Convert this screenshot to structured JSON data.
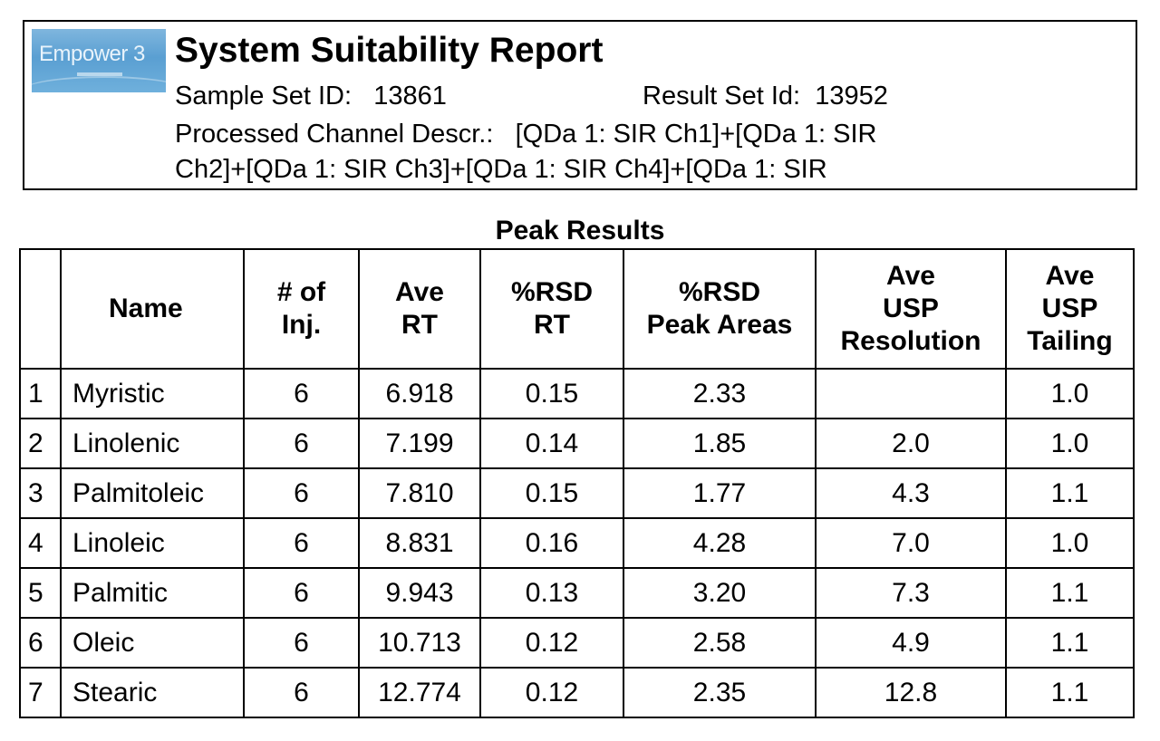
{
  "header": {
    "logo_text": "Empower 3",
    "title": "System Suitability Report",
    "sample_set_label": "Sample Set ID:",
    "sample_set_id": "13861",
    "result_set_label": "Result Set Id:",
    "result_set_id": "13952",
    "channel_label": "Processed Channel Descr.:",
    "channel_line1": "[QDa 1: SIR Ch1]+[QDa 1: SIR",
    "channel_line2": "Ch2]+[QDa 1: SIR Ch3]+[QDa 1: SIR Ch4]+[QDa 1: SIR"
  },
  "table": {
    "caption": "Peak Results",
    "headers": [
      "",
      "Name",
      "# of\nInj.",
      "Ave\nRT",
      "%RSD\nRT",
      "%RSD\nPeak Areas",
      "Ave\nUSP\nResolution",
      "Ave\nUSP\nTailing"
    ],
    "rows": [
      [
        "1",
        "Myristic",
        "6",
        "6.918",
        "0.15",
        "2.33",
        "",
        "1.0"
      ],
      [
        "2",
        "Linolenic",
        "6",
        "7.199",
        "0.14",
        "1.85",
        "2.0",
        "1.0"
      ],
      [
        "3",
        "Palmitoleic",
        "6",
        "7.810",
        "0.15",
        "1.77",
        "4.3",
        "1.1"
      ],
      [
        "4",
        "Linoleic",
        "6",
        "8.831",
        "0.16",
        "4.28",
        "7.0",
        "1.0"
      ],
      [
        "5",
        "Palmitic",
        "6",
        "9.943",
        "0.13",
        "3.20",
        "7.3",
        "1.1"
      ],
      [
        "6",
        "Oleic",
        "6",
        "10.713",
        "0.12",
        "2.58",
        "4.9",
        "1.1"
      ],
      [
        "7",
        "Stearic",
        "6",
        "12.774",
        "0.12",
        "2.35",
        "12.8",
        "1.1"
      ]
    ]
  }
}
